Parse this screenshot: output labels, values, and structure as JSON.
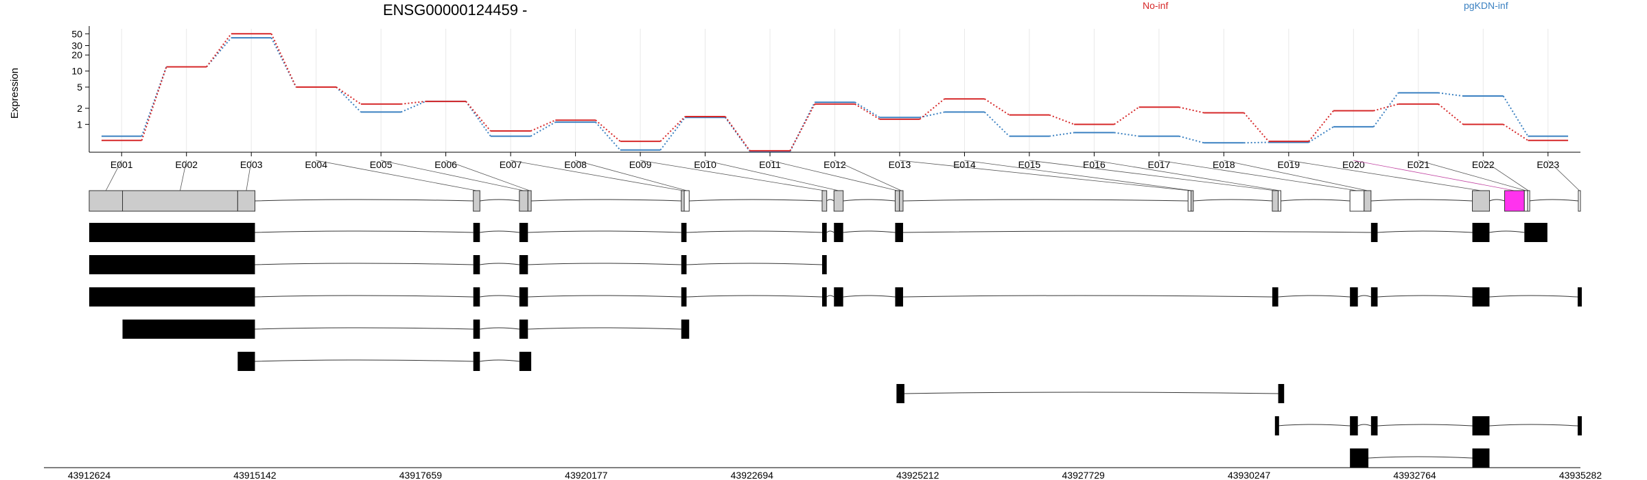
{
  "chart_data": {
    "type": "line",
    "title": "ENSG00000124459 -",
    "ylabel": "Expression",
    "yscale": "log",
    "yticks": [
      {
        "v": 1,
        "label": "1"
      },
      {
        "v": 2,
        "label": "2"
      },
      {
        "v": 5,
        "label": "5"
      },
      {
        "v": 10,
        "label": "10"
      },
      {
        "v": 20,
        "label": "20"
      },
      {
        "v": 30,
        "label": "30"
      },
      {
        "v": 50,
        "label": "50"
      }
    ],
    "ylim": [
      0.3,
      62
    ],
    "categories": [
      "E001",
      "E002",
      "E003",
      "E004",
      "E005",
      "E006",
      "E007",
      "E008",
      "E009",
      "E010",
      "E011",
      "E012",
      "E013",
      "E014",
      "E015",
      "E016",
      "E017",
      "E018",
      "E019",
      "E020",
      "E021",
      "E022",
      "E023"
    ],
    "series": [
      {
        "name": "No-inf",
        "color": "#d62728",
        "values": [
          0.5,
          12,
          50,
          5,
          2.4,
          2.7,
          0.75,
          1.2,
          0.48,
          1.4,
          0.32,
          2.4,
          1.25,
          3,
          1.5,
          1.0,
          2.1,
          1.65,
          0.48,
          1.8,
          2.4,
          1.0,
          0.5
        ]
      },
      {
        "name": "pgKDN-inf",
        "color": "#3a80c1",
        "values": [
          0.6,
          12,
          42,
          5,
          1.7,
          2.7,
          0.6,
          1.1,
          0.33,
          1.35,
          0.31,
          2.6,
          1.35,
          1.7,
          0.6,
          0.7,
          0.6,
          0.45,
          0.46,
          0.9,
          3.9,
          3.4,
          0.6
        ]
      }
    ],
    "genome": {
      "start": 43912624,
      "end": 43935282,
      "ticks": [
        "43912624",
        "43915142",
        "43917659",
        "43920177",
        "43922694",
        "43925212",
        "43927729",
        "43930247",
        "43932764",
        "43935282"
      ]
    },
    "exon_bins": [
      {
        "id": "E001",
        "start": 43912624,
        "end": 43913130,
        "fill": "#cccccc"
      },
      {
        "id": "E002",
        "start": 43913130,
        "end": 43914880,
        "fill": "#cccccc"
      },
      {
        "id": "E003",
        "start": 43914880,
        "end": 43915142,
        "fill": "#cccccc"
      },
      {
        "id": "E004",
        "start": 43918460,
        "end": 43918560,
        "fill": "#cccccc"
      },
      {
        "id": "E005",
        "start": 43919160,
        "end": 43919290,
        "fill": "#cccccc"
      },
      {
        "id": "E006",
        "start": 43919290,
        "end": 43919340,
        "fill": "#cccccc"
      },
      {
        "id": "E007",
        "start": 43921620,
        "end": 43921665,
        "fill": "#cccccc"
      },
      {
        "id": "E008",
        "start": 43921665,
        "end": 43921740,
        "fill": "#ffffff"
      },
      {
        "id": "E009",
        "start": 43923760,
        "end": 43923830,
        "fill": "#cccccc"
      },
      {
        "id": "E010",
        "start": 43923940,
        "end": 43924080,
        "fill": "#cccccc"
      },
      {
        "id": "E011",
        "start": 43924870,
        "end": 43924935,
        "fill": "#cccccc"
      },
      {
        "id": "E012",
        "start": 43924935,
        "end": 43924990,
        "fill": "#cccccc"
      },
      {
        "id": "E013",
        "start": 43929320,
        "end": 43929365,
        "fill": "#ffffff"
      },
      {
        "id": "E014",
        "start": 43929365,
        "end": 43929400,
        "fill": "#cccccc"
      },
      {
        "id": "E015",
        "start": 43930600,
        "end": 43930690,
        "fill": "#cccccc"
      },
      {
        "id": "E016",
        "start": 43930690,
        "end": 43930730,
        "fill": "#ffffff"
      },
      {
        "id": "E017",
        "start": 43931780,
        "end": 43931995,
        "fill": "#ffffff"
      },
      {
        "id": "E018",
        "start": 43931995,
        "end": 43932100,
        "fill": "#cccccc"
      },
      {
        "id": "E019",
        "start": 43933640,
        "end": 43933900,
        "fill": "#cccccc"
      },
      {
        "id": "E020",
        "start": 43934130,
        "end": 43934430,
        "fill": "#ff33ee"
      },
      {
        "id": "E021",
        "start": 43934430,
        "end": 43934480,
        "fill": "#ffffff"
      },
      {
        "id": "E022",
        "start": 43934480,
        "end": 43934500,
        "fill": "#ffffff"
      },
      {
        "id": "E023",
        "start": 43935250,
        "end": 43935282,
        "fill": "#ffffff"
      }
    ],
    "transcripts": [
      [
        [
          43912624,
          43915142
        ],
        [
          43918460,
          43918560
        ],
        [
          43919160,
          43919290
        ],
        [
          43921620,
          43921700
        ],
        [
          43923760,
          43923830
        ],
        [
          43923940,
          43924080
        ],
        [
          43924870,
          43924990
        ],
        [
          43932100,
          43932200
        ],
        [
          43933640,
          43933900
        ],
        [
          43934430,
          43934780
        ]
      ],
      [
        [
          43912624,
          43915142
        ],
        [
          43918460,
          43918560
        ],
        [
          43919160,
          43919290
        ],
        [
          43921620,
          43921700
        ],
        [
          43923760,
          43923830
        ]
      ],
      [
        [
          43912624,
          43915142
        ],
        [
          43918460,
          43918560
        ],
        [
          43919160,
          43919290
        ],
        [
          43921620,
          43921700
        ],
        [
          43923760,
          43923830
        ],
        [
          43923940,
          43924080
        ],
        [
          43924870,
          43924990
        ],
        [
          43930600,
          43930690
        ],
        [
          43931780,
          43931900
        ],
        [
          43932100,
          43932200
        ],
        [
          43933640,
          43933900
        ],
        [
          43935240,
          43935282
        ]
      ],
      [
        [
          43913130,
          43915142
        ],
        [
          43918460,
          43918560
        ],
        [
          43919160,
          43919290
        ],
        [
          43921620,
          43921740
        ]
      ],
      [
        [
          43914880,
          43915142
        ],
        [
          43918460,
          43918560
        ],
        [
          43919160,
          43919340
        ]
      ],
      [
        [
          43924890,
          43925010
        ],
        [
          43930690,
          43930780
        ]
      ],
      [
        [
          43930640,
          43930680
        ],
        [
          43931780,
          43931900
        ],
        [
          43932100,
          43932200
        ],
        [
          43933640,
          43933900
        ],
        [
          43935240,
          43935282
        ]
      ],
      [
        [
          43931780,
          43932060
        ],
        [
          43933640,
          43933900
        ]
      ]
    ]
  }
}
